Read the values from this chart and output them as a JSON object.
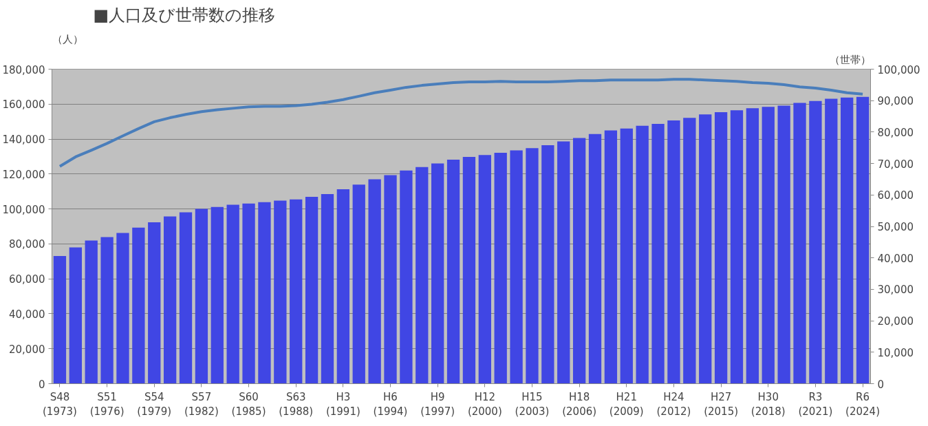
{
  "chart_data": {
    "type": "bar",
    "title": "■人口及び世帯数の推移",
    "ylabel": "（人）",
    "y2label": "（世帯）",
    "categories": [
      "S48\n(1973)",
      null,
      null,
      "S51\n(1976)",
      null,
      null,
      "S54\n(1979)",
      null,
      null,
      "S57\n(1982)",
      null,
      null,
      "S60\n(1985)",
      null,
      null,
      "S63\n(1988)",
      null,
      null,
      "H3\n(1991)",
      null,
      null,
      "H6\n(1994)",
      null,
      null,
      "H9\n(1997)",
      null,
      null,
      "H12\n(2000)",
      null,
      null,
      "H15\n(2003)",
      null,
      null,
      "H18\n(2006)",
      null,
      null,
      "H21\n(2009)",
      null,
      null,
      "H24\n(2012)",
      null,
      null,
      "H27\n(2015)",
      null,
      null,
      "H30\n(2018)",
      null,
      null,
      "R3\n(2021)",
      null,
      null,
      "R6\n(2024)"
    ],
    "series": [
      {
        "axis": "y2",
        "color": "#4046e4",
        "values": [
          40600,
          43300,
          45500,
          46600,
          47900,
          49600,
          51300,
          53200,
          54500,
          55600,
          56200,
          56900,
          57300,
          57700,
          58200,
          58600,
          59400,
          60300,
          61800,
          63300,
          65000,
          66300,
          67800,
          68900,
          70000,
          71200,
          72100,
          72700,
          73400,
          74200,
          74900,
          75800,
          77000,
          78100,
          79400,
          80500,
          81100,
          82000,
          82600,
          83700,
          84500,
          85600,
          86300,
          86900,
          87600,
          88000,
          88400,
          89300,
          89900,
          90600,
          91000,
          91200
        ]
      },
      {
        "type": "line",
        "color": "#4a7ebb",
        "values": [
          124400,
          129800,
          133600,
          137500,
          141800,
          146000,
          149900,
          152200,
          154100,
          155700,
          156800,
          157600,
          158400,
          158700,
          158700,
          159100,
          159900,
          161100,
          162600,
          164500,
          166500,
          168000,
          169600,
          170700,
          171500,
          172300,
          172700,
          172700,
          173000,
          172700,
          172700,
          172700,
          173000,
          173400,
          173400,
          173800,
          173800,
          173800,
          173800,
          174200,
          174200,
          173800,
          173400,
          173000,
          172300,
          171900,
          171100,
          169900,
          169200,
          168000,
          166500,
          165700
        ]
      }
    ],
    "ylim": [
      0,
      180000
    ],
    "yticks": [
      {
        "value": 0,
        "label": "0"
      },
      {
        "value": 20000,
        "label": "20,000"
      },
      {
        "value": 40000,
        "label": "40,000"
      },
      {
        "value": 60000,
        "label": "60,000"
      },
      {
        "value": 80000,
        "label": "80,000"
      },
      {
        "value": 100000,
        "label": "100,000"
      },
      {
        "value": 120000,
        "label": "120,000"
      },
      {
        "value": 140000,
        "label": "140,000"
      },
      {
        "value": 160000,
        "label": "160,000"
      },
      {
        "value": 180000,
        "label": "180,000"
      }
    ],
    "y2lim": [
      0,
      100000
    ],
    "y2ticks": [
      {
        "value": 0,
        "label": "0"
      },
      {
        "value": 10000,
        "label": "10,000"
      },
      {
        "value": 20000,
        "label": "20,000"
      },
      {
        "value": 30000,
        "label": "30,000"
      },
      {
        "value": 40000,
        "label": "40,000"
      },
      {
        "value": 50000,
        "label": "50,000"
      },
      {
        "value": 60000,
        "label": "60,000"
      },
      {
        "value": 70000,
        "label": "70,000"
      },
      {
        "value": 80000,
        "label": "80,000"
      },
      {
        "value": 90000,
        "label": "90,000"
      },
      {
        "value": 100000,
        "label": "100,000"
      }
    ],
    "grid": "y",
    "marker": "none",
    "line_style": "solid"
  }
}
